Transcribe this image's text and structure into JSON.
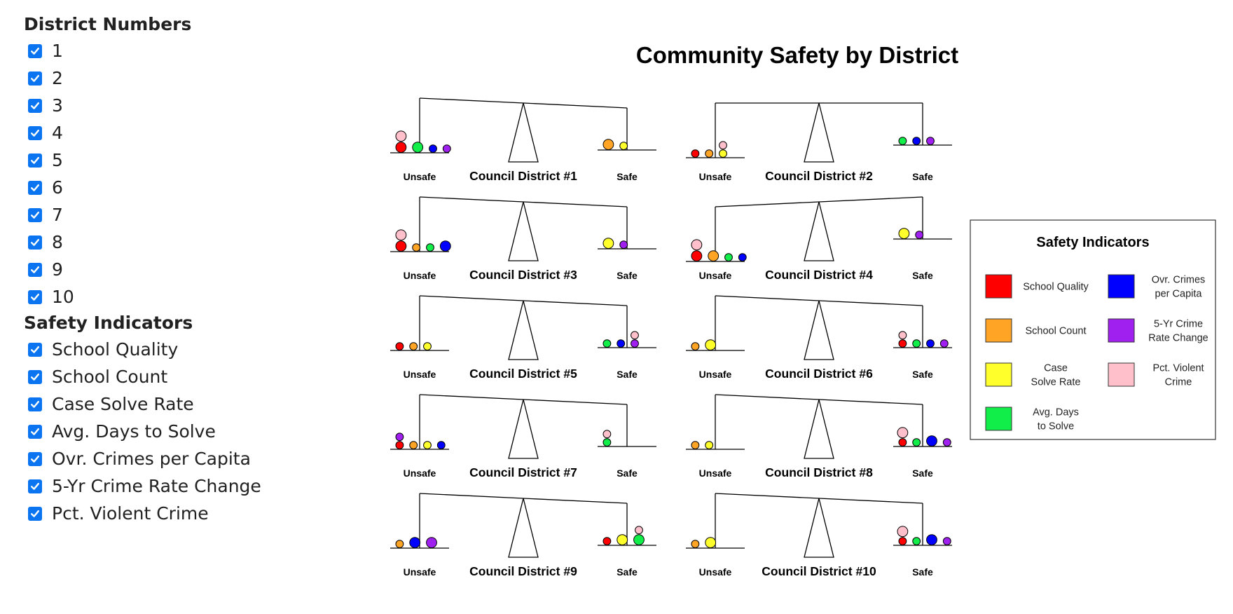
{
  "filters": {
    "districts": {
      "title": "District Numbers",
      "items": [
        {
          "label": "1",
          "checked": true
        },
        {
          "label": "2",
          "checked": true
        },
        {
          "label": "3",
          "checked": true
        },
        {
          "label": "4",
          "checked": true
        },
        {
          "label": "5",
          "checked": true
        },
        {
          "label": "6",
          "checked": true
        },
        {
          "label": "7",
          "checked": true
        },
        {
          "label": "8",
          "checked": true
        },
        {
          "label": "9",
          "checked": true
        },
        {
          "label": "10",
          "checked": true
        }
      ]
    },
    "indicators": {
      "title": "Safety Indicators",
      "items": [
        {
          "label": "School Quality",
          "checked": true
        },
        {
          "label": "School Count",
          "checked": true
        },
        {
          "label": "Case Solve Rate",
          "checked": true
        },
        {
          "label": "Avg. Days to Solve",
          "checked": true
        },
        {
          "label": "Ovr. Crimes per Capita",
          "checked": true
        },
        {
          "label": "5-Yr Crime Rate Change",
          "checked": true
        },
        {
          "label": "Pct. Violent Crime",
          "checked": true
        }
      ]
    }
  },
  "chart_data": {
    "type": "other",
    "title": "Community Safety by District",
    "side_labels": {
      "unsafe": "Unsafe",
      "safe": "Safe"
    },
    "legend": {
      "title": "Safety Indicators",
      "items": [
        {
          "key": "sq",
          "label": "School Quality",
          "color": "#ff0000"
        },
        {
          "key": "sc",
          "label": "School Count",
          "color": "#ffa424"
        },
        {
          "key": "csr",
          "label": "Case Solve Rate",
          "color": "#ffff2b"
        },
        {
          "key": "ads",
          "label": "Avg. Days to Solve",
          "color": "#11ee4a"
        },
        {
          "key": "oc",
          "label": "Ovr. Crimes per Capita",
          "color": "#0000ff"
        },
        {
          "key": "crc",
          "label": "5-Yr Crime Rate Change",
          "color": "#a020f0"
        },
        {
          "key": "pvc",
          "label": "Pct. Violent Crime",
          "color": "#ffc0cb"
        }
      ]
    },
    "districts": [
      {
        "name": "Council District #1",
        "tilt": "safe-heavy",
        "unsafe": [
          {
            "i": "sq",
            "s": "m"
          },
          {
            "i": "pvc",
            "s": "m"
          },
          {
            "i": "ads",
            "s": "m"
          },
          {
            "i": "oc",
            "s": "s"
          },
          {
            "i": "crc",
            "s": "s"
          }
        ],
        "safe": [
          {
            "i": "sc",
            "s": "m"
          },
          {
            "i": "csr",
            "s": "s"
          }
        ]
      },
      {
        "name": "Council District #2",
        "tilt": "level",
        "unsafe": [
          {
            "i": "sq",
            "s": "s"
          },
          {
            "i": "sc",
            "s": "s"
          },
          {
            "i": "csr",
            "s": "s"
          },
          {
            "i": "pvc",
            "s": "s"
          }
        ],
        "safe": [
          {
            "i": "ads",
            "s": "s"
          },
          {
            "i": "oc",
            "s": "s"
          },
          {
            "i": "crc",
            "s": "s"
          }
        ]
      },
      {
        "name": "Council District #3",
        "tilt": "safe-heavy",
        "unsafe": [
          {
            "i": "sq",
            "s": "m"
          },
          {
            "i": "pvc",
            "s": "m"
          },
          {
            "i": "sc",
            "s": "s"
          },
          {
            "i": "ads",
            "s": "s"
          },
          {
            "i": "oc",
            "s": "m"
          }
        ],
        "safe": [
          {
            "i": "csr",
            "s": "m"
          },
          {
            "i": "crc",
            "s": "s"
          }
        ]
      },
      {
        "name": "Council District #4",
        "tilt": "unsafe-heavy",
        "unsafe": [
          {
            "i": "sq",
            "s": "m"
          },
          {
            "i": "pvc",
            "s": "m"
          },
          {
            "i": "sc",
            "s": "m"
          },
          {
            "i": "ads",
            "s": "s"
          },
          {
            "i": "oc",
            "s": "s"
          }
        ],
        "safe": [
          {
            "i": "csr",
            "s": "m"
          },
          {
            "i": "crc",
            "s": "s"
          }
        ]
      },
      {
        "name": "Council District #5",
        "tilt": "safe-heavy",
        "unsafe": [
          {
            "i": "sq",
            "s": "s"
          },
          {
            "i": "sc",
            "s": "s"
          },
          {
            "i": "csr",
            "s": "s"
          }
        ],
        "safe": [
          {
            "i": "ads",
            "s": "s"
          },
          {
            "i": "oc",
            "s": "s"
          },
          {
            "i": "crc",
            "s": "s"
          },
          {
            "i": "pvc",
            "s": "s"
          }
        ]
      },
      {
        "name": "Council District #6",
        "tilt": "safe-heavy",
        "unsafe": [
          {
            "i": "sc",
            "s": "s"
          },
          {
            "i": "csr",
            "s": "m"
          }
        ],
        "safe": [
          {
            "i": "sq",
            "s": "s"
          },
          {
            "i": "pvc",
            "s": "s"
          },
          {
            "i": "ads",
            "s": "s"
          },
          {
            "i": "oc",
            "s": "s"
          },
          {
            "i": "crc",
            "s": "s"
          }
        ]
      },
      {
        "name": "Council District #7",
        "tilt": "safe-heavy",
        "unsafe": [
          {
            "i": "sq",
            "s": "s"
          },
          {
            "i": "crc",
            "s": "s"
          },
          {
            "i": "sc",
            "s": "s"
          },
          {
            "i": "csr",
            "s": "s"
          },
          {
            "i": "oc",
            "s": "s"
          }
        ],
        "safe": [
          {
            "i": "ads",
            "s": "s"
          },
          {
            "i": "pvc",
            "s": "s"
          }
        ]
      },
      {
        "name": "Council District #8",
        "tilt": "safe-heavy",
        "unsafe": [
          {
            "i": "sc",
            "s": "s"
          },
          {
            "i": "csr",
            "s": "s"
          }
        ],
        "safe": [
          {
            "i": "sq",
            "s": "s"
          },
          {
            "i": "pvc",
            "s": "m"
          },
          {
            "i": "ads",
            "s": "s"
          },
          {
            "i": "oc",
            "s": "m"
          },
          {
            "i": "crc",
            "s": "s"
          }
        ]
      },
      {
        "name": "Council District #9",
        "tilt": "safe-heavy",
        "unsafe": [
          {
            "i": "sc",
            "s": "s"
          },
          {
            "i": "oc",
            "s": "m"
          },
          {
            "i": "crc",
            "s": "m"
          }
        ],
        "safe": [
          {
            "i": "sq",
            "s": "s"
          },
          {
            "i": "csr",
            "s": "m"
          },
          {
            "i": "ads",
            "s": "m"
          },
          {
            "i": "pvc",
            "s": "s"
          }
        ]
      },
      {
        "name": "Council District #10",
        "tilt": "safe-heavy",
        "unsafe": [
          {
            "i": "sc",
            "s": "s"
          },
          {
            "i": "csr",
            "s": "m"
          }
        ],
        "safe": [
          {
            "i": "sq",
            "s": "s"
          },
          {
            "i": "pvc",
            "s": "m"
          },
          {
            "i": "ads",
            "s": "s"
          },
          {
            "i": "oc",
            "s": "m"
          },
          {
            "i": "crc",
            "s": "s"
          }
        ]
      }
    ]
  }
}
